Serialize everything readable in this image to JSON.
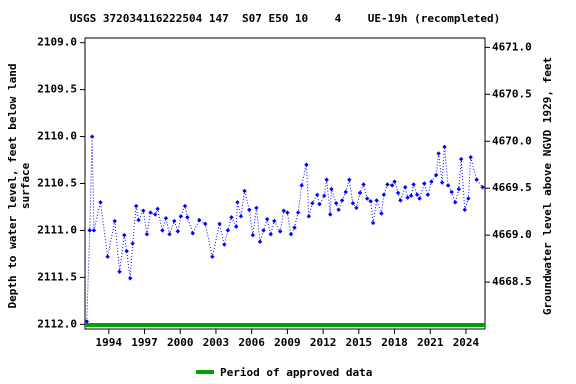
{
  "chart_data": {
    "type": "line",
    "title": "USGS 372034116222504 147  S07 E50 10    4    UE-19h (recompleted)",
    "ylabel": [
      "Depth to water level, feet below land",
      "surface"
    ],
    "y2label": "Groundwater level above NGVD 1929, feet",
    "x": [
      1992.15,
      1992.4,
      1992.6,
      1992.75,
      1993.3,
      1993.9,
      1994.5,
      1994.9,
      1995.3,
      1995.5,
      1995.8,
      1996.0,
      1996.3,
      1996.5,
      1996.9,
      1997.2,
      1997.5,
      1997.9,
      1998.1,
      1998.5,
      1998.8,
      1999.1,
      1999.5,
      1999.8,
      2000.05,
      2000.4,
      2000.6,
      2001.05,
      2001.6,
      2002.1,
      2002.7,
      2003.3,
      2003.7,
      2004.0,
      2004.3,
      2004.7,
      2004.8,
      2005.1,
      2005.4,
      2005.8,
      2006.1,
      2006.4,
      2006.7,
      2007.0,
      2007.3,
      2007.6,
      2007.9,
      2008.4,
      2008.7,
      2009.0,
      2009.3,
      2009.6,
      2009.9,
      2010.2,
      2010.6,
      2010.8,
      2011.1,
      2011.5,
      2011.7,
      2012.1,
      2012.3,
      2012.6,
      2012.7,
      2013.1,
      2013.3,
      2013.6,
      2013.9,
      2014.2,
      2014.5,
      2014.8,
      2015.1,
      2015.4,
      2015.7,
      2016.0,
      2016.2,
      2016.5,
      2016.9,
      2017.1,
      2017.4,
      2017.8,
      2018.0,
      2018.3,
      2018.5,
      2018.9,
      2019.1,
      2019.4,
      2019.6,
      2019.9,
      2020.1,
      2020.5,
      2020.8,
      2021.1,
      2021.5,
      2021.7,
      2022.0,
      2022.2,
      2022.5,
      2022.8,
      2023.1,
      2023.4,
      2023.6,
      2023.9,
      2024.2,
      2024.4,
      2024.9,
      2025.4
    ],
    "series": [
      {
        "color": "#0000ff",
        "values": [
          2111.97,
          2111.0,
          2110.0,
          2111.0,
          2110.7,
          2111.28,
          2110.9,
          2111.44,
          2111.05,
          2111.22,
          2111.51,
          2111.14,
          2110.74,
          2110.89,
          2110.79,
          2111.04,
          2110.81,
          2110.83,
          2110.77,
          2111.0,
          2110.87,
          2111.04,
          2110.9,
          2111.01,
          2110.85,
          2110.74,
          2110.86,
          2111.03,
          2110.89,
          2110.93,
          2111.28,
          2110.93,
          2111.15,
          2111.0,
          2110.86,
          2110.96,
          2110.7,
          2110.85,
          2110.58,
          2110.78,
          2111.05,
          2110.76,
          2111.12,
          2111.0,
          2110.88,
          2111.04,
          2110.9,
          2111.01,
          2110.79,
          2110.81,
          2111.04,
          2110.97,
          2110.81,
          2110.52,
          2110.3,
          2110.85,
          2110.71,
          2110.62,
          2110.72,
          2110.63,
          2110.46,
          2110.83,
          2110.56,
          2110.71,
          2110.78,
          2110.68,
          2110.59,
          2110.46,
          2110.71,
          2110.76,
          2110.6,
          2110.51,
          2110.66,
          2110.69,
          2110.92,
          2110.68,
          2110.82,
          2110.62,
          2110.51,
          2110.52,
          2110.48,
          2110.6,
          2110.68,
          2110.54,
          2110.65,
          2110.63,
          2110.51,
          2110.62,
          2110.66,
          2110.5,
          2110.62,
          2110.48,
          2110.41,
          2110.18,
          2110.49,
          2110.11,
          2110.52,
          2110.59,
          2110.7,
          2110.56,
          2110.24,
          2110.78,
          2110.66,
          2110.22,
          2110.46,
          2110.54
        ]
      }
    ],
    "approved_period": {
      "name": "Period of approved data",
      "color": "#00a000",
      "x": [
        1992.0,
        2025.6
      ]
    },
    "xlim": [
      1992.0,
      2025.6
    ],
    "xticks": [
      1994,
      1997,
      2000,
      2003,
      2006,
      2009,
      2012,
      2015,
      2018,
      2021,
      2024
    ],
    "ylim": [
      2112.05,
      2108.95
    ],
    "yticks": [
      {
        "value": 2109.0,
        "label": "2109.0"
      },
      {
        "value": 2109.5,
        "label": "2109.5"
      },
      {
        "value": 2110.0,
        "label": "2110.0"
      },
      {
        "value": 2110.5,
        "label": "2110.5"
      },
      {
        "value": 2111.0,
        "label": "2111.0"
      },
      {
        "value": 2111.5,
        "label": "2111.5"
      },
      {
        "value": 2112.0,
        "label": "2112.0"
      }
    ],
    "y2lim": [
      4668.0,
      4671.1
    ],
    "y2ticks": [
      {
        "value": 4668.5,
        "label": "4668.5"
      },
      {
        "value": 4669.0,
        "label": "4669.0"
      },
      {
        "value": 4669.5,
        "label": "4669.5"
      },
      {
        "value": 4670.0,
        "label": "4670.0"
      },
      {
        "value": 4670.5,
        "label": "4670.5"
      },
      {
        "value": 4671.0,
        "label": "4671.0"
      }
    ]
  }
}
